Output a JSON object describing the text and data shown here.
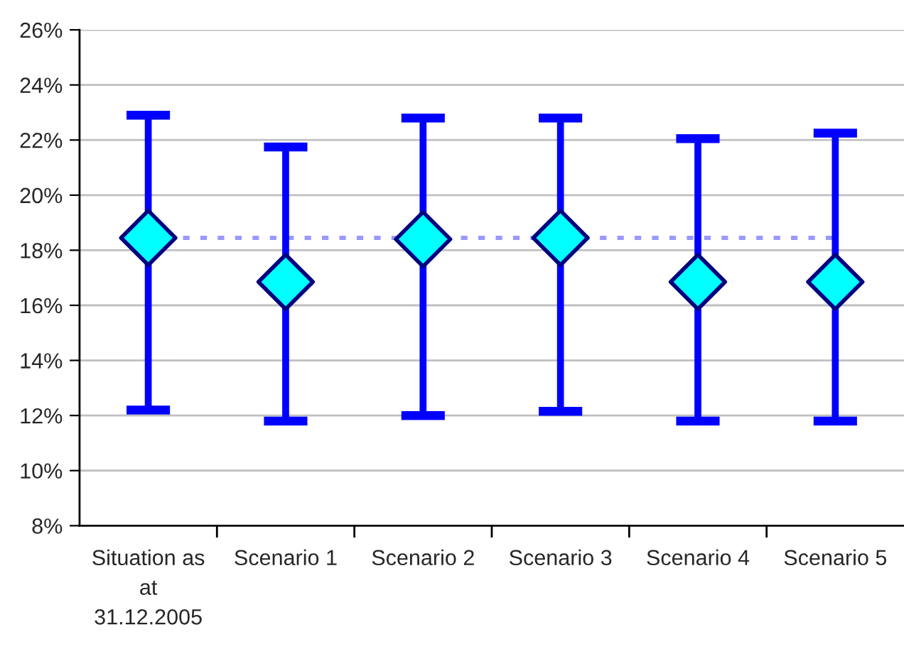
{
  "chart_data": {
    "type": "scatter",
    "categories": [
      "Situation as at 31.12.2005",
      "Scenario 1",
      "Scenario 2",
      "Scenario 3",
      "Scenario 4",
      "Scenario 5"
    ],
    "values": [
      18.45,
      16.85,
      18.4,
      18.45,
      16.85,
      16.85
    ],
    "errors": [
      [
        12.2,
        22.9
      ],
      [
        11.8,
        21.75
      ],
      [
        12.0,
        22.8
      ],
      [
        12.15,
        22.8
      ],
      [
        11.8,
        22.05
      ],
      [
        11.8,
        22.25
      ]
    ],
    "color": "#00ffff",
    "marker": "diamond",
    "ylim": [
      8,
      26
    ],
    "yticks": [
      {
        "value": 8,
        "label": "8%"
      },
      {
        "value": 10,
        "label": "10%"
      },
      {
        "value": 12,
        "label": "12%"
      },
      {
        "value": 14,
        "label": "14%"
      },
      {
        "value": 16,
        "label": "16%"
      },
      {
        "value": 18,
        "label": "18%"
      },
      {
        "value": 20,
        "label": "20%"
      },
      {
        "value": 22,
        "label": "22%"
      },
      {
        "value": 24,
        "label": "24%"
      },
      {
        "value": 26,
        "label": "26%"
      }
    ],
    "ref_lines": [
      {
        "axis": "y",
        "value": 18.45,
        "color": "#9999ff",
        "line_style": "dotted"
      }
    ],
    "grid": "y",
    "legend": false
  }
}
